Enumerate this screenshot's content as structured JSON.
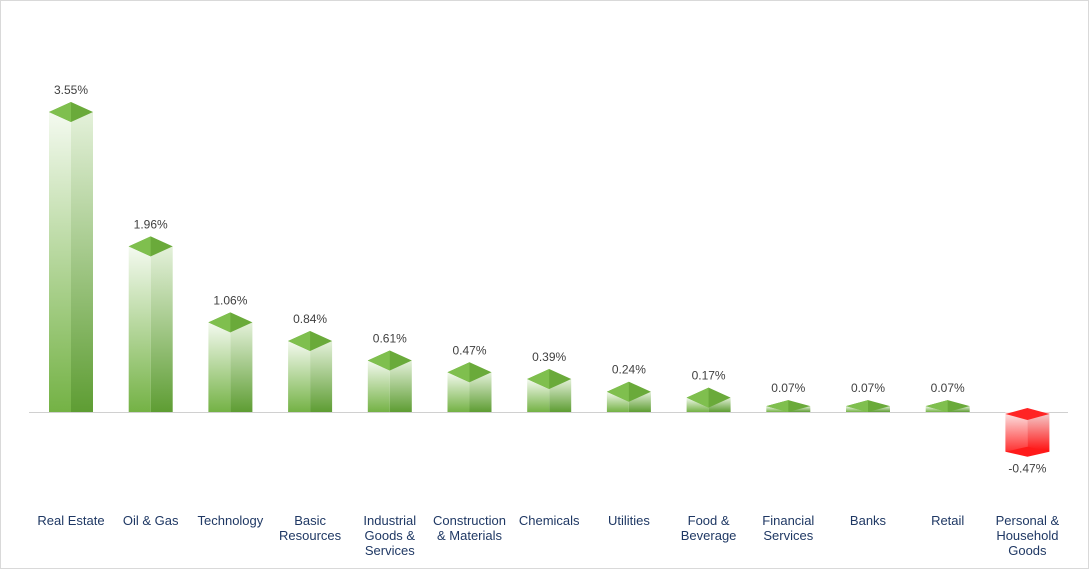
{
  "chart_data": {
    "type": "bar",
    "title": "",
    "xlabel": "",
    "ylabel": "",
    "categories": [
      "Real Estate",
      "Oil & Gas",
      "Technology",
      "Basic Resources",
      "Industrial Goods & Services",
      "Construction & Materials",
      "Chemicals",
      "Utilities",
      "Food & Beverage",
      "Financial Services",
      "Banks",
      "Retail",
      "Personal & Household Goods"
    ],
    "category_lines": [
      [
        "Real Estate"
      ],
      [
        "Oil & Gas"
      ],
      [
        "Technology"
      ],
      [
        "Basic",
        "Resources"
      ],
      [
        "Industrial",
        "Goods &",
        "Services"
      ],
      [
        "Construction",
        "& Materials"
      ],
      [
        "Chemicals"
      ],
      [
        "Utilities"
      ],
      [
        "Food &",
        "Beverage"
      ],
      [
        "Financial",
        "Services"
      ],
      [
        "Banks"
      ],
      [
        "Retail"
      ],
      [
        "Personal &",
        "Household",
        "Goods"
      ]
    ],
    "values": [
      3.55,
      1.96,
      1.06,
      0.84,
      0.61,
      0.47,
      0.39,
      0.24,
      0.17,
      0.07,
      0.07,
      0.07,
      -0.47
    ],
    "value_labels": [
      "3.55%",
      "1.96%",
      "1.06%",
      "0.84%",
      "0.61%",
      "0.47%",
      "0.39%",
      "0.24%",
      "0.17%",
      "0.07%",
      "0.07%",
      "0.07%",
      "-0.47%"
    ],
    "unit": "%",
    "grid": false,
    "legend": "none",
    "colors": {
      "positive": "#6aaa3a",
      "positive_light": "#eef6e8",
      "negative": "#ff1a1a",
      "negative_light": "#fbe5e5",
      "baseline": "#d0d0d0",
      "category_text": "#1f3864",
      "value_text": "#404040"
    }
  }
}
